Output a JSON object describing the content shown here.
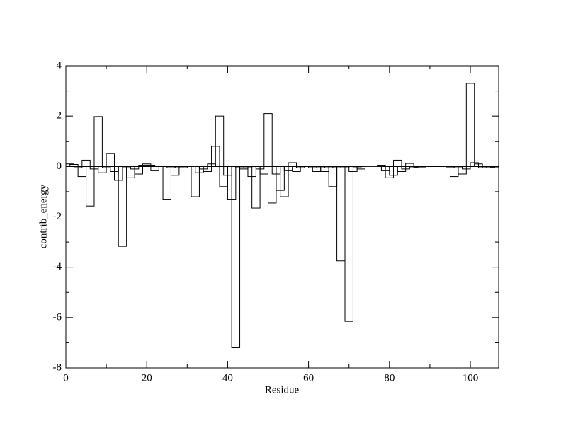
{
  "chart_data": {
    "type": "bar",
    "xlabel": "Residue",
    "ylabel": "contrib_energy",
    "x": [
      1,
      2,
      3,
      4,
      5,
      6,
      7,
      8,
      9,
      10,
      11,
      12,
      13,
      14,
      15,
      16,
      17,
      18,
      19,
      20,
      21,
      22,
      23,
      24,
      25,
      26,
      27,
      28,
      29,
      30,
      31,
      32,
      33,
      34,
      35,
      36,
      37,
      38,
      39,
      40,
      41,
      42,
      43,
      44,
      45,
      46,
      47,
      48,
      49,
      50,
      51,
      52,
      53,
      54,
      55,
      56,
      57,
      58,
      59,
      60,
      61,
      62,
      63,
      64,
      65,
      66,
      67,
      68,
      69,
      70,
      71,
      72,
      73,
      74,
      75,
      76,
      77,
      78,
      79,
      80,
      81,
      82,
      83,
      84,
      85,
      86,
      87,
      88,
      89,
      90,
      91,
      92,
      93,
      94,
      95,
      96,
      97,
      98,
      99,
      100,
      101,
      102,
      103,
      104,
      105,
      106
    ],
    "values": [
      0.1,
      0.08,
      -0.05,
      -0.4,
      0.25,
      -1.57,
      -0.1,
      1.98,
      -0.25,
      -0.05,
      0.52,
      -0.2,
      -0.55,
      -3.17,
      -0.05,
      -0.45,
      -0.1,
      -0.3,
      0.05,
      0.1,
      0.05,
      -0.15,
      0.02,
      0.02,
      -1.3,
      -0.05,
      -0.35,
      -0.05,
      -0.05,
      0.02,
      0.02,
      -1.2,
      -0.25,
      -0.1,
      -0.2,
      0.1,
      0.8,
      2.0,
      -0.8,
      -0.35,
      -1.3,
      -7.2,
      -0.05,
      -0.1,
      -0.05,
      -0.4,
      -1.65,
      -0.1,
      -0.3,
      2.1,
      -1.45,
      -0.3,
      -0.95,
      -1.2,
      -0.15,
      0.15,
      -0.2,
      -0.05,
      0.02,
      0.02,
      -0.05,
      -0.2,
      -0.05,
      -0.2,
      -0.05,
      -0.8,
      -0.05,
      -3.75,
      -0.05,
      -6.15,
      -0.2,
      -0.05,
      -0.1,
      0,
      0,
      0,
      0,
      0.05,
      -0.15,
      -0.45,
      -0.35,
      0.25,
      -0.2,
      -0.1,
      0.12,
      -0.05,
      -0.02,
      -0.02,
      0.02,
      0.02,
      0.02,
      0.02,
      0.02,
      0.02,
      -0.02,
      -0.4,
      -0.05,
      -0.3,
      -0.1,
      3.3,
      0.15,
      0.1,
      -0.05,
      -0.05,
      -0.05,
      -0.02
    ],
    "color": "#000000",
    "xlim": [
      0,
      107
    ],
    "xticks": [
      0,
      20,
      40,
      60,
      80,
      100
    ],
    "xminorticks": [
      10,
      30,
      50,
      70,
      90
    ],
    "ylim": [
      -8,
      4
    ],
    "yticks": [
      -8,
      -6,
      -4,
      -2,
      0,
      2,
      4
    ],
    "yminorticks": [
      -7,
      -5,
      -3,
      -1,
      1,
      3
    ]
  }
}
